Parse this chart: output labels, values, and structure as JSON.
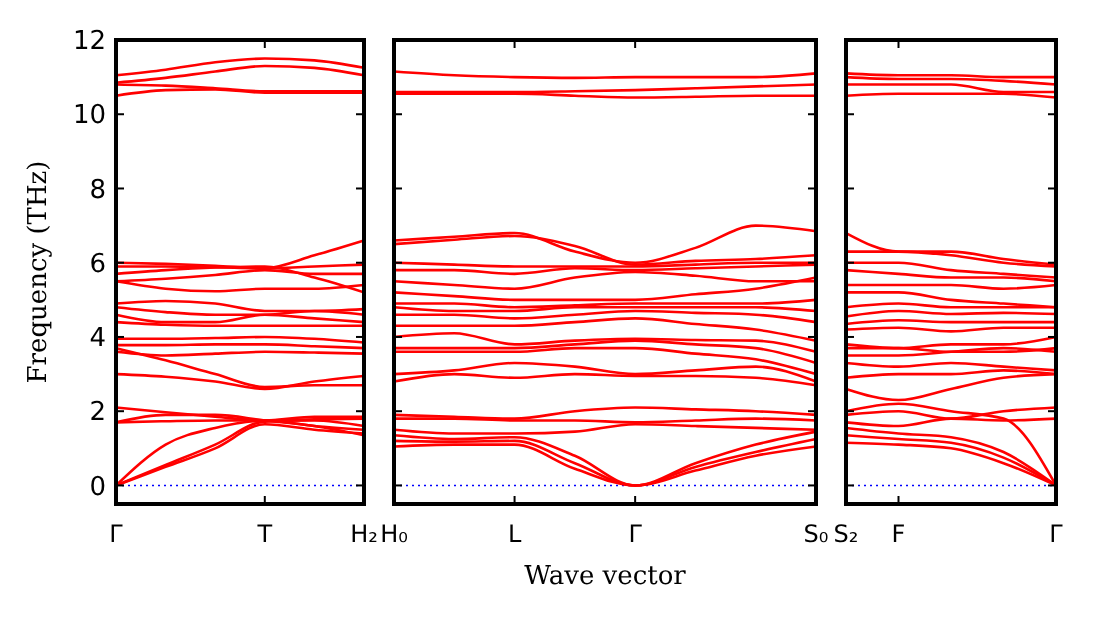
{
  "chart_data": [
    {
      "type": "line",
      "ylabel": "Frequency (THz)",
      "color": "#ff0000",
      "line_style": "solid",
      "ylim": [
        -0.5,
        12
      ],
      "yticks": [
        0,
        2,
        4,
        6,
        8,
        10,
        12
      ],
      "categories": [
        "Γ",
        null,
        null,
        "T",
        null,
        "H₂"
      ],
      "ref_lines": [
        {
          "axis": "y",
          "value": 0,
          "color": "#0000ff",
          "line_style": "dotted"
        }
      ],
      "series": [
        {
          "values": [
            10.85,
            10.98,
            11.15,
            11.3,
            11.25,
            11.05
          ]
        },
        {
          "values": [
            11.05,
            11.2,
            11.4,
            11.5,
            11.45,
            11.25
          ]
        },
        {
          "values": [
            10.8,
            10.77,
            10.7,
            10.62,
            10.62,
            10.62
          ]
        },
        {
          "values": [
            10.5,
            10.65,
            10.67,
            10.58,
            10.58,
            10.58
          ]
        },
        {
          "values": [
            6.0,
            5.97,
            5.92,
            5.85,
            6.2,
            6.6
          ]
        },
        {
          "values": [
            5.9,
            5.9,
            5.88,
            5.85,
            5.9,
            5.95
          ]
        },
        {
          "values": [
            5.7,
            5.8,
            5.87,
            5.9,
            5.6,
            5.2
          ]
        },
        {
          "values": [
            5.5,
            5.57,
            5.67,
            5.8,
            5.7,
            5.7
          ]
        },
        {
          "values": [
            5.5,
            5.3,
            5.23,
            5.3,
            5.3,
            5.4
          ]
        },
        {
          "values": [
            4.9,
            4.97,
            4.9,
            4.7,
            4.7,
            4.75
          ]
        },
        {
          "values": [
            4.8,
            4.67,
            4.6,
            4.6,
            4.7,
            4.6
          ]
        },
        {
          "values": [
            4.6,
            4.4,
            4.4,
            4.6,
            4.5,
            4.4
          ]
        },
        {
          "values": [
            4.4,
            4.33,
            4.3,
            4.3,
            4.3,
            4.3
          ]
        },
        {
          "values": [
            3.95,
            3.95,
            3.97,
            4.0,
            3.95,
            3.85
          ]
        },
        {
          "values": [
            3.78,
            3.78,
            3.8,
            3.8,
            3.75,
            3.7
          ]
        },
        {
          "values": [
            3.6,
            3.5,
            3.55,
            3.6,
            3.58,
            3.55
          ]
        },
        {
          "values": [
            3.7,
            3.37,
            3.0,
            2.65,
            2.7,
            2.7
          ]
        },
        {
          "values": [
            3.0,
            2.93,
            2.8,
            2.6,
            2.8,
            2.95
          ]
        },
        {
          "values": [
            2.1,
            1.97,
            1.85,
            1.75,
            1.85,
            1.85
          ]
        },
        {
          "values": [
            1.7,
            1.73,
            1.75,
            1.75,
            1.6,
            1.5
          ]
        },
        {
          "values": [
            1.7,
            1.9,
            1.9,
            1.75,
            1.6,
            1.35
          ]
        },
        {
          "values": [
            0,
            1.1,
            1.55,
            1.75,
            1.78,
            1.8
          ]
        },
        {
          "values": [
            0,
            0.55,
            1.1,
            1.72,
            1.75,
            1.6
          ]
        },
        {
          "values": [
            0,
            0.5,
            1.0,
            1.65,
            1.5,
            1.4
          ]
        }
      ]
    },
    {
      "type": "line",
      "xlabel": "Wave vector",
      "color": "#ff0000",
      "line_style": "solid",
      "tick_labels": "x",
      "ylim": [
        -0.5,
        12
      ],
      "yticks": [
        0,
        2,
        4,
        6,
        8,
        10,
        12
      ],
      "categories": [
        "H₀",
        null,
        "L",
        null,
        "Γ",
        null,
        null,
        "S₀"
      ],
      "ref_lines": [
        {
          "axis": "y",
          "value": 0,
          "color": "#0000ff",
          "line_style": "dotted"
        }
      ],
      "series": [
        {
          "values": [
            11.15,
            11.05,
            11.0,
            10.98,
            11.0,
            11.0,
            11.0,
            11.1
          ]
        },
        {
          "values": [
            10.6,
            10.6,
            10.6,
            10.62,
            10.65,
            10.7,
            10.75,
            10.8
          ]
        },
        {
          "values": [
            10.55,
            10.55,
            10.55,
            10.5,
            10.45,
            10.47,
            10.5,
            10.5
          ]
        },
        {
          "values": [
            6.6,
            6.7,
            6.8,
            6.3,
            6.0,
            6.4,
            7.0,
            6.85
          ]
        },
        {
          "values": [
            6.5,
            6.62,
            6.72,
            6.45,
            5.95,
            6.05,
            6.1,
            6.2
          ]
        },
        {
          "values": [
            6.0,
            5.95,
            5.9,
            5.9,
            5.9,
            5.95,
            6.0,
            6.0
          ]
        },
        {
          "values": [
            5.8,
            5.8,
            5.7,
            5.85,
            5.8,
            5.85,
            5.9,
            5.95
          ]
        },
        {
          "values": [
            5.5,
            5.4,
            5.3,
            5.6,
            5.75,
            5.65,
            5.5,
            5.5
          ]
        },
        {
          "values": [
            5.2,
            5.1,
            5.0,
            5.0,
            5.0,
            5.15,
            5.3,
            5.6
          ]
        },
        {
          "values": [
            4.9,
            4.9,
            4.8,
            4.85,
            4.9,
            4.9,
            4.9,
            5.0
          ]
        },
        {
          "values": [
            4.8,
            4.7,
            4.7,
            4.8,
            4.8,
            4.8,
            4.8,
            4.7
          ]
        },
        {
          "values": [
            4.6,
            4.6,
            4.5,
            4.6,
            4.7,
            4.65,
            4.6,
            4.4
          ]
        },
        {
          "values": [
            4.3,
            4.3,
            4.3,
            4.4,
            4.5,
            4.35,
            4.2,
            3.9
          ]
        },
        {
          "values": [
            4.0,
            4.1,
            3.8,
            3.9,
            3.95,
            3.92,
            3.9,
            3.6
          ]
        },
        {
          "values": [
            3.7,
            3.7,
            3.7,
            3.8,
            3.9,
            3.8,
            3.7,
            3.3
          ]
        },
        {
          "values": [
            3.6,
            3.6,
            3.6,
            3.7,
            3.7,
            3.55,
            3.4,
            3.0
          ]
        },
        {
          "values": [
            3.0,
            3.1,
            3.3,
            3.2,
            3.0,
            3.1,
            3.2,
            2.8
          ]
        },
        {
          "values": [
            2.8,
            3.0,
            2.9,
            3.0,
            2.95,
            2.95,
            2.9,
            2.7
          ]
        },
        {
          "values": [
            1.9,
            1.85,
            1.8,
            2.0,
            2.1,
            2.05,
            2.0,
            1.9
          ]
        },
        {
          "values": [
            1.8,
            1.8,
            1.75,
            1.75,
            1.7,
            1.75,
            1.8,
            1.75
          ]
        },
        {
          "values": [
            1.5,
            1.4,
            1.4,
            1.45,
            1.65,
            1.6,
            1.55,
            1.5
          ]
        },
        {
          "values": [
            1.35,
            1.25,
            1.3,
            0.8,
            0,
            0.6,
            1.1,
            1.45
          ]
        },
        {
          "values": [
            1.2,
            1.18,
            1.2,
            0.6,
            0,
            0.5,
            0.9,
            1.25
          ]
        },
        {
          "values": [
            1.05,
            1.1,
            1.1,
            0.45,
            0,
            0.4,
            0.8,
            1.05
          ]
        }
      ]
    },
    {
      "type": "line",
      "color": "#ff0000",
      "line_style": "solid",
      "tick_labels": "x",
      "ylim": [
        -0.5,
        12
      ],
      "yticks": [
        0,
        2,
        4,
        6,
        8,
        10,
        12
      ],
      "categories": [
        "S₂",
        "F",
        null,
        null,
        "Γ"
      ],
      "ref_lines": [
        {
          "axis": "y",
          "value": 0,
          "color": "#0000ff",
          "line_style": "dotted"
        }
      ],
      "series": [
        {
          "values": [
            11.1,
            11.05,
            11.05,
            11.0,
            11.0
          ]
        },
        {
          "values": [
            11.0,
            10.95,
            10.95,
            10.9,
            10.8
          ]
        },
        {
          "values": [
            10.8,
            10.8,
            10.8,
            10.6,
            10.6
          ]
        },
        {
          "values": [
            10.5,
            10.55,
            10.55,
            10.55,
            10.45
          ]
        },
        {
          "values": [
            6.8,
            6.3,
            6.3,
            6.1,
            5.95
          ]
        },
        {
          "values": [
            6.3,
            6.3,
            6.2,
            6.0,
            5.9
          ]
        },
        {
          "values": [
            6.0,
            6.0,
            5.8,
            5.7,
            5.6
          ]
        },
        {
          "values": [
            5.8,
            5.7,
            5.6,
            5.6,
            5.5
          ]
        },
        {
          "values": [
            5.4,
            5.4,
            5.4,
            5.3,
            5.4
          ]
        },
        {
          "values": [
            5.2,
            5.2,
            5.0,
            4.9,
            4.8
          ]
        },
        {
          "values": [
            4.8,
            4.9,
            4.8,
            4.8,
            4.8
          ]
        },
        {
          "values": [
            4.55,
            4.7,
            4.62,
            4.65,
            4.62
          ]
        },
        {
          "values": [
            4.35,
            4.45,
            4.4,
            4.4,
            4.4
          ]
        },
        {
          "values": [
            4.2,
            4.25,
            4.15,
            4.25,
            4.25
          ]
        },
        {
          "values": [
            3.8,
            3.7,
            3.8,
            3.8,
            4.0
          ]
        },
        {
          "values": [
            3.7,
            3.7,
            3.6,
            3.6,
            3.7
          ]
        },
        {
          "values": [
            3.5,
            3.5,
            3.6,
            3.7,
            3.6
          ]
        },
        {
          "values": [
            3.3,
            3.2,
            3.3,
            3.2,
            3.1
          ]
        },
        {
          "values": [
            2.9,
            3.0,
            3.0,
            3.1,
            3.0
          ]
        },
        {
          "values": [
            2.6,
            2.3,
            2.6,
            2.9,
            3.0
          ]
        },
        {
          "values": [
            2.0,
            2.2,
            2.0,
            1.8,
            0
          ]
        },
        {
          "values": [
            1.9,
            2.0,
            1.8,
            2.0,
            2.1
          ]
        },
        {
          "values": [
            1.7,
            1.6,
            1.8,
            1.75,
            1.8
          ]
        },
        {
          "values": [
            1.55,
            1.4,
            1.3,
            0.9,
            0
          ]
        },
        {
          "values": [
            1.35,
            1.25,
            1.15,
            0.75,
            0
          ]
        },
        {
          "values": [
            1.15,
            1.1,
            1.0,
            0.6,
            0
          ]
        }
      ]
    }
  ]
}
